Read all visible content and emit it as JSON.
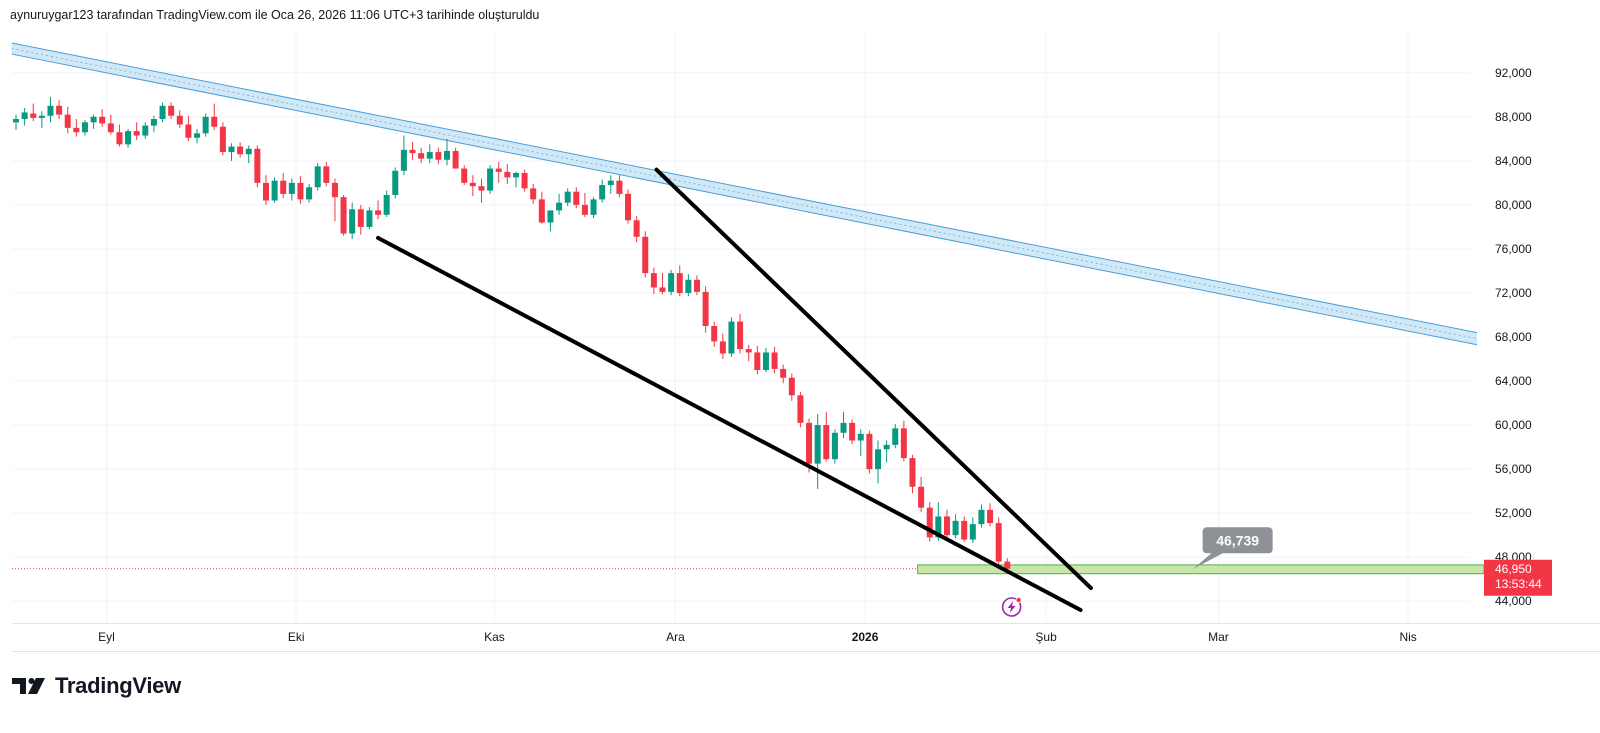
{
  "header": {
    "caption": "aynuruygar123 tarafından TradingView.com ile Oca 26, 2026 11:06 UTC+3 tarihinde oluşturuldu"
  },
  "brand": {
    "name": "TradingView",
    "logo_icon": "tradingview-logo-icon"
  },
  "colors": {
    "up": "#089981",
    "down": "#f23645",
    "channel": "#4a9fd8",
    "channel_fill": "#c9e4f5",
    "zone_fill": "#c8e6a8",
    "zone_border": "#4caf50",
    "price_tag": "#f23645",
    "callout": "#8e9196",
    "trendline": "#000000",
    "grid": "#f0f3fa"
  },
  "chart_data": {
    "type": "candlestick",
    "title": "",
    "xlabel": "",
    "ylabel": "",
    "ylim": [
      42000,
      95000
    ],
    "y_ticks": [
      44000,
      48000,
      52000,
      56000,
      60000,
      64000,
      68000,
      72000,
      76000,
      80000,
      84000,
      88000,
      92000
    ],
    "y_tick_labels": [
      "44,000",
      "48,000",
      "52,000",
      "56,000",
      "60,000",
      "64,000",
      "68,000",
      "72,000",
      "76,000",
      "80,000",
      "84,000",
      "88,000",
      "92,000"
    ],
    "x_tick_labels": [
      {
        "text": "Eyl",
        "index": 10.5,
        "bold": false
      },
      {
        "text": "Eki",
        "index": 32.5,
        "bold": false
      },
      {
        "text": "Kas",
        "index": 55.5,
        "bold": false
      },
      {
        "text": "Ara",
        "index": 76.5,
        "bold": false
      },
      {
        "text": "2026",
        "index": 98.5,
        "bold": true
      },
      {
        "text": "Şub",
        "index": 119.5,
        "bold": false
      },
      {
        "text": "Mar",
        "index": 139.5,
        "bold": false
      },
      {
        "text": "Nis",
        "index": 161.5,
        "bold": false
      }
    ],
    "candles": [
      [
        87500,
        88200,
        86800,
        87800
      ],
      [
        87800,
        88800,
        87200,
        88400
      ],
      [
        88300,
        89200,
        87600,
        87900
      ],
      [
        87900,
        88500,
        87000,
        88100
      ],
      [
        88100,
        89800,
        87500,
        89000
      ],
      [
        89000,
        89500,
        87800,
        88200
      ],
      [
        88200,
        88900,
        86500,
        87000
      ],
      [
        87000,
        87800,
        86200,
        86600
      ],
      [
        86600,
        87700,
        86300,
        87500
      ],
      [
        87500,
        88200,
        86900,
        88000
      ],
      [
        88000,
        88700,
        87100,
        87400
      ],
      [
        87400,
        88200,
        86400,
        86600
      ],
      [
        86600,
        87300,
        85300,
        85500
      ],
      [
        85500,
        86900,
        85200,
        86700
      ],
      [
        86700,
        87500,
        85900,
        86300
      ],
      [
        86300,
        87500,
        86000,
        87200
      ],
      [
        87200,
        88100,
        86600,
        87800
      ],
      [
        87800,
        89300,
        87500,
        89000
      ],
      [
        89000,
        89300,
        87800,
        88100
      ],
      [
        88100,
        88600,
        87000,
        87300
      ],
      [
        87300,
        88100,
        85800,
        86100
      ],
      [
        86100,
        86900,
        85600,
        86500
      ],
      [
        86500,
        88300,
        86200,
        88000
      ],
      [
        88000,
        89200,
        86800,
        87100
      ],
      [
        87100,
        87500,
        84500,
        84800
      ],
      [
        84800,
        85600,
        84000,
        85300
      ],
      [
        85300,
        85700,
        84300,
        84600
      ],
      [
        84600,
        85400,
        83800,
        85100
      ],
      [
        85100,
        85400,
        81600,
        82000
      ],
      [
        82000,
        82700,
        80000,
        80400
      ],
      [
        80400,
        82500,
        80200,
        82200
      ],
      [
        82200,
        82900,
        80600,
        81000
      ],
      [
        81000,
        82400,
        80400,
        82000
      ],
      [
        82000,
        82600,
        80100,
        80500
      ],
      [
        80500,
        81900,
        80200,
        81600
      ],
      [
        81600,
        83800,
        81300,
        83500
      ],
      [
        83500,
        83900,
        81700,
        82000
      ],
      [
        82000,
        82400,
        78500,
        80700
      ],
      [
        80700,
        80900,
        77200,
        77400
      ],
      [
        77400,
        80200,
        76900,
        79600
      ],
      [
        79600,
        80000,
        77300,
        78000
      ],
      [
        78000,
        79800,
        77800,
        79500
      ],
      [
        79500,
        80400,
        78700,
        79100
      ],
      [
        79100,
        81300,
        78900,
        80900
      ],
      [
        80900,
        83400,
        80600,
        83100
      ],
      [
        83100,
        86300,
        82700,
        85000
      ],
      [
        85000,
        85700,
        84100,
        84700
      ],
      [
        84700,
        85200,
        83800,
        84200
      ],
      [
        84200,
        85500,
        83800,
        84800
      ],
      [
        84800,
        85200,
        83700,
        84100
      ],
      [
        84100,
        86000,
        83600,
        84900
      ],
      [
        84900,
        85200,
        83600,
        83300
      ],
      [
        83300,
        83600,
        81800,
        82000
      ],
      [
        82000,
        82700,
        80800,
        81700
      ],
      [
        81700,
        82400,
        80200,
        81300
      ],
      [
        81300,
        83600,
        81000,
        83300
      ],
      [
        83300,
        83900,
        82000,
        83000
      ],
      [
        83000,
        83700,
        81900,
        82500
      ],
      [
        82500,
        83000,
        81600,
        82900
      ],
      [
        82900,
        83200,
        81200,
        81500
      ],
      [
        81500,
        81900,
        80100,
        80500
      ],
      [
        80500,
        81200,
        78300,
        78400
      ],
      [
        78400,
        79100,
        77600,
        79500
      ],
      [
        79500,
        81000,
        79100,
        80200
      ],
      [
        80200,
        81500,
        79900,
        81200
      ],
      [
        81200,
        81600,
        79700,
        80000
      ],
      [
        80000,
        81100,
        78900,
        79100
      ],
      [
        79100,
        80700,
        78800,
        80500
      ],
      [
        80500,
        82300,
        80200,
        81800
      ],
      [
        81800,
        82700,
        81000,
        82200
      ],
      [
        82200,
        82700,
        80700,
        81000
      ],
      [
        81000,
        81400,
        78300,
        78600
      ],
      [
        78600,
        79000,
        76600,
        77100
      ],
      [
        77100,
        77600,
        73400,
        73800
      ],
      [
        73800,
        74300,
        71900,
        72500
      ],
      [
        72500,
        73800,
        71900,
        72100
      ],
      [
        72100,
        74100,
        71800,
        73800
      ],
      [
        73800,
        74500,
        71700,
        72000
      ],
      [
        72000,
        73700,
        71700,
        73200
      ],
      [
        73200,
        73600,
        71800,
        72100
      ],
      [
        72100,
        72600,
        68400,
        69000
      ],
      [
        69000,
        69400,
        67100,
        67600
      ],
      [
        67600,
        68300,
        66000,
        66500
      ],
      [
        66500,
        69800,
        66200,
        69400
      ],
      [
        69400,
        70100,
        66500,
        66900
      ],
      [
        66900,
        67300,
        65800,
        66600
      ],
      [
        66600,
        67200,
        64600,
        65000
      ],
      [
        65000,
        67000,
        64800,
        66600
      ],
      [
        66600,
        67100,
        64700,
        65100
      ],
      [
        65100,
        65500,
        63800,
        64300
      ],
      [
        64300,
        64700,
        62200,
        62700
      ],
      [
        62700,
        63000,
        59800,
        60200
      ],
      [
        60200,
        60600,
        55700,
        56500
      ],
      [
        56500,
        61000,
        54200,
        60000
      ],
      [
        60000,
        61200,
        56700,
        56900
      ],
      [
        56900,
        59600,
        56500,
        59300
      ],
      [
        59300,
        61200,
        58800,
        60200
      ],
      [
        60200,
        60500,
        58300,
        58600
      ],
      [
        58600,
        59600,
        57200,
        59200
      ],
      [
        59200,
        59500,
        55600,
        56000
      ],
      [
        56000,
        58600,
        54700,
        57800
      ],
      [
        57800,
        58600,
        56600,
        58200
      ],
      [
        58200,
        60100,
        57900,
        59700
      ],
      [
        59700,
        60400,
        56700,
        57000
      ],
      [
        57000,
        57300,
        53800,
        54400
      ],
      [
        54400,
        55300,
        52100,
        52500
      ],
      [
        52500,
        53000,
        49400,
        49800
      ],
      [
        49800,
        53000,
        49500,
        51700
      ],
      [
        51700,
        52300,
        49600,
        50000
      ],
      [
        50000,
        51900,
        49700,
        51300
      ],
      [
        51300,
        51700,
        49400,
        49600
      ],
      [
        49600,
        51600,
        49300,
        51000
      ],
      [
        51000,
        52800,
        50700,
        52300
      ],
      [
        52300,
        52900,
        50800,
        51100
      ],
      [
        51100,
        51600,
        47300,
        47600
      ],
      [
        47600,
        47900,
        46500,
        46950
      ]
    ],
    "channel_upper": {
      "start": {
        "x": -0.5,
        "y": 94700
      },
      "end": {
        "x": 169.5,
        "y": 68400
      }
    },
    "channel_lower": {
      "start": {
        "x": -0.5,
        "y": 93700
      },
      "end": {
        "x": 169.5,
        "y": 67300
      }
    },
    "wedge_upper": {
      "start": {
        "x": 74.3,
        "y": 83200
      },
      "end": {
        "x": 124.7,
        "y": 45200
      }
    },
    "wedge_lower": {
      "start": {
        "x": 42,
        "y": 77000
      },
      "end": {
        "x": 123.5,
        "y": 43200
      }
    },
    "support_zone": {
      "from_index": 104.6,
      "y_low": 46500,
      "y_high": 47300
    },
    "price_callout": {
      "value": "46,739",
      "anchor_index": 136.5
    },
    "last_price": {
      "value": "46,950",
      "countdown": "13:53:44",
      "y": 46950
    },
    "event_marker": {
      "index": 115.5,
      "icon": "lightning-icon"
    }
  }
}
